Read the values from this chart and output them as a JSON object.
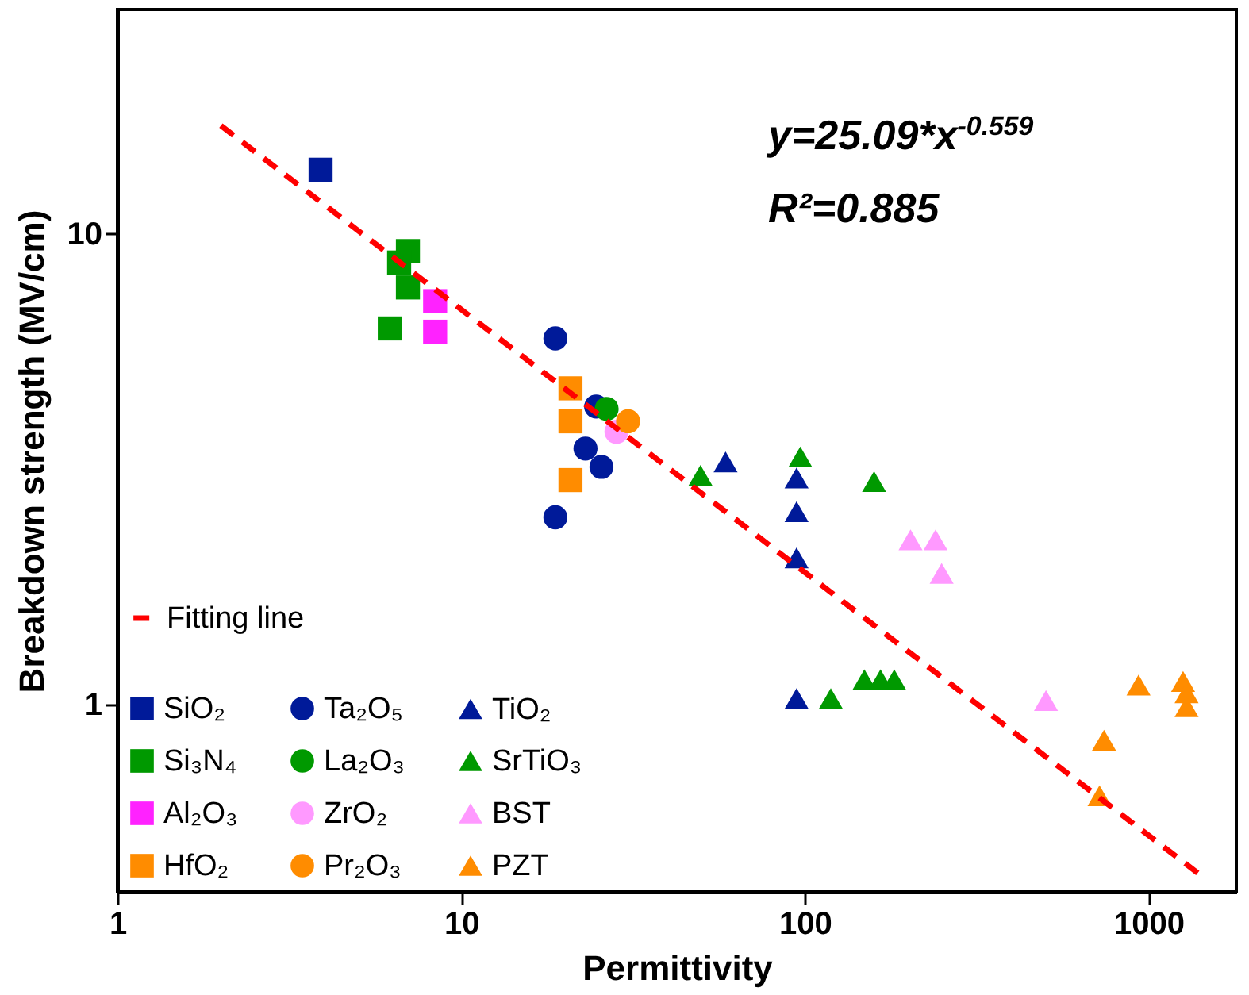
{
  "chart_data": {
    "type": "scatter",
    "xlabel": "Permittivity",
    "ylabel": "Breakdown strength (MV/cm)",
    "log": "xy",
    "xlim": [
      1,
      1800
    ],
    "ylim": [
      0.4,
      30
    ],
    "xticks": [
      1,
      10,
      100,
      1000
    ],
    "yticks": [
      1,
      10
    ],
    "grid": false,
    "legend": "bottom left",
    "annotations": [
      "y=25.09*x$^{-0.559}$",
      "R²=0.885"
    ],
    "series": [
      {
        "name": "Fitting line",
        "type": "line",
        "color": "#ff0000",
        "line_style": "dashed",
        "x": [
          2,
          1400
        ],
        "values": [
          17.0,
          0.437
        ]
      },
      {
        "name": "SiO₂",
        "color": "#001a99",
        "marker": "square",
        "x": [
          3.9
        ],
        "values": [
          13.7
        ]
      },
      {
        "name": "Si₃N₄",
        "color": "#009900",
        "marker": "square",
        "x": [
          7.0,
          6.6,
          7.0,
          6.2
        ],
        "values": [
          9.2,
          8.7,
          7.7,
          6.3
        ]
      },
      {
        "name": "Al₂O₃",
        "color": "#ff22ff",
        "marker": "square",
        "x": [
          8.4,
          8.4
        ],
        "values": [
          7.2,
          6.2
        ]
      },
      {
        "name": "HfO₂",
        "color": "#ff8c00",
        "marker": "square",
        "x": [
          20.8,
          20.8,
          20.8
        ],
        "values": [
          4.7,
          4.0,
          3.0
        ]
      },
      {
        "name": "Ta₂O₅",
        "color": "#001a99",
        "marker": "circle",
        "x": [
          18.8,
          24.7,
          23,
          25.6,
          18.8
        ],
        "values": [
          6.0,
          4.3,
          3.5,
          3.2,
          2.5
        ]
      },
      {
        "name": "La₂O₃",
        "color": "#009900",
        "marker": "circle",
        "x": [
          26.5
        ],
        "values": [
          4.25
        ]
      },
      {
        "name": "ZrO₂",
        "color": "#ff99ff",
        "marker": "circle",
        "x": [
          28.3
        ],
        "values": [
          3.8
        ]
      },
      {
        "name": "Pr₂O₃",
        "color": "#ff8c00",
        "marker": "circle",
        "x": [
          30.6
        ],
        "values": [
          4.0
        ]
      },
      {
        "name": "TiO₂",
        "color": "#001a99",
        "marker": "triangle",
        "x": [
          58.8,
          94.6,
          94.6,
          94.6,
          94.6
        ],
        "values": [
          3.28,
          3.03,
          2.57,
          2.05,
          1.03
        ]
      },
      {
        "name": "SrTiO₃",
        "color": "#009900",
        "marker": "triangle",
        "x": [
          49.7,
          97,
          159,
          119,
          149,
          166,
          182
        ],
        "values": [
          3.07,
          3.36,
          2.98,
          1.03,
          1.13,
          1.13,
          1.13
        ]
      },
      {
        "name": "BST",
        "color": "#ff99ff",
        "marker": "triangle",
        "x": [
          203,
          240,
          250,
          503
        ],
        "values": [
          2.24,
          2.24,
          1.9,
          1.02
        ]
      },
      {
        "name": "PZT",
        "color": "#ff8c00",
        "marker": "triangle",
        "x": [
          935,
          1260,
          1290,
          1290,
          742,
          720
        ],
        "values": [
          1.1,
          1.12,
          1.06,
          0.99,
          0.84,
          0.64
        ]
      }
    ]
  }
}
